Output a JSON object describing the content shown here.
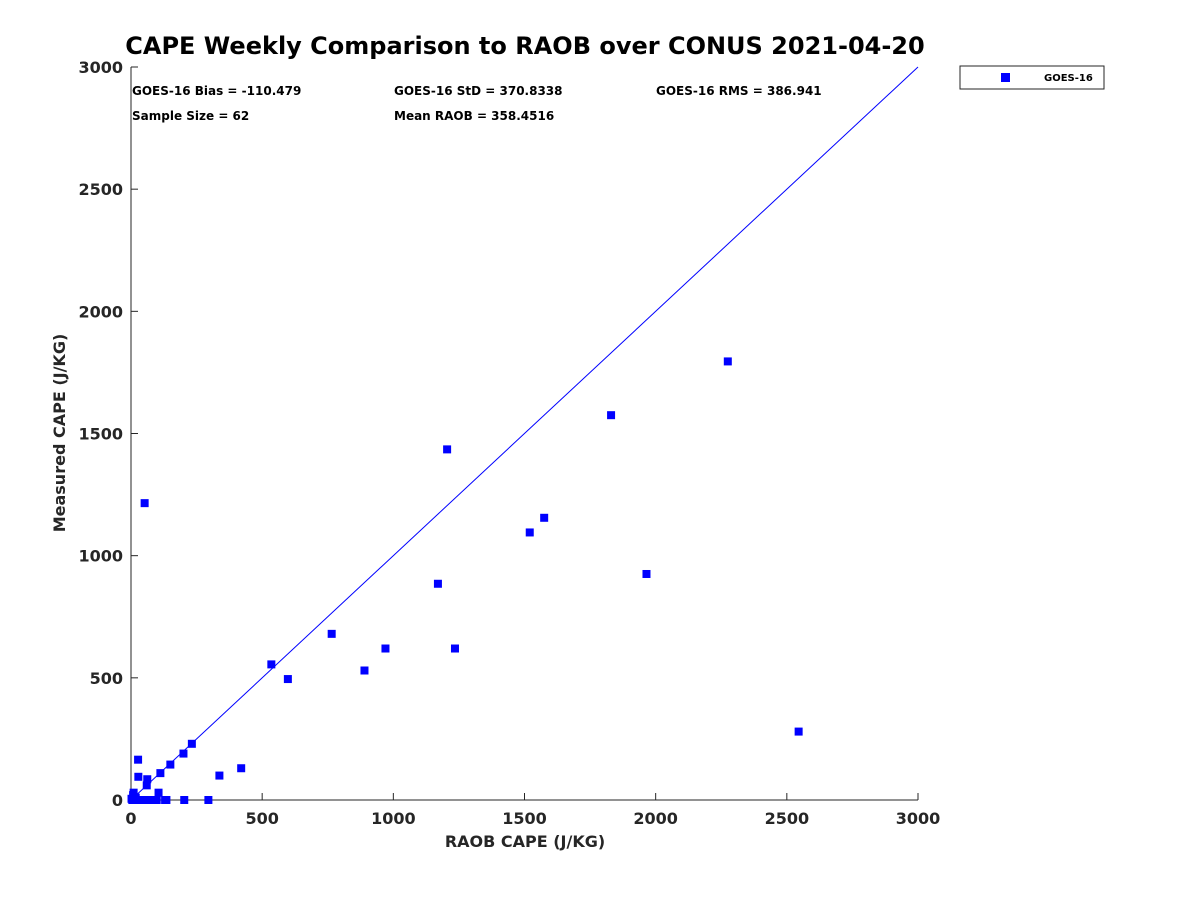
{
  "chart_data": {
    "type": "scatter",
    "title": "CAPE Weekly Comparison to RAOB over CONUS 2021-04-20",
    "xlabel": "RAOB CAPE (J/KG)",
    "ylabel": "Measured CAPE (J/KG)",
    "xlim": [
      0,
      3000
    ],
    "ylim": [
      0,
      3000
    ],
    "xticks": [
      0,
      500,
      1000,
      1500,
      2000,
      2500,
      3000
    ],
    "yticks": [
      0,
      500,
      1000,
      1500,
      2000,
      2500,
      3000
    ],
    "xtick_labels": [
      "0",
      "500",
      "1000",
      "1500",
      "2000",
      "2500",
      "3000"
    ],
    "ytick_labels": [
      "0",
      "500",
      "1000",
      "1500",
      "2000",
      "2500",
      "3000"
    ],
    "grid": false,
    "legend_position": "outside-top-right",
    "reference_line": {
      "name": "1:1 line",
      "x": [
        0,
        3000
      ],
      "y": [
        0,
        3000
      ],
      "color": "#0000FF"
    },
    "series": [
      {
        "name": "GOES-16",
        "color": "#0000FF",
        "marker": "square",
        "points": [
          [
            2,
            5
          ],
          [
            5,
            0
          ],
          [
            8,
            20
          ],
          [
            10,
            30
          ],
          [
            14,
            0
          ],
          [
            18,
            10
          ],
          [
            22,
            0
          ],
          [
            27,
            165
          ],
          [
            28,
            95
          ],
          [
            33,
            0
          ],
          [
            42,
            0
          ],
          [
            48,
            0
          ],
          [
            52,
            1215
          ],
          [
            55,
            0
          ],
          [
            60,
            60
          ],
          [
            62,
            85
          ],
          [
            68,
            0
          ],
          [
            75,
            0
          ],
          [
            85,
            0
          ],
          [
            98,
            0
          ],
          [
            105,
            30
          ],
          [
            112,
            110
          ],
          [
            130,
            0
          ],
          [
            135,
            0
          ],
          [
            150,
            145
          ],
          [
            200,
            190
          ],
          [
            203,
            0
          ],
          [
            232,
            230
          ],
          [
            295,
            0
          ],
          [
            337,
            100
          ],
          [
            420,
            130
          ],
          [
            535,
            555
          ],
          [
            598,
            495
          ],
          [
            765,
            680
          ],
          [
            890,
            530
          ],
          [
            970,
            620
          ],
          [
            1170,
            885
          ],
          [
            1205,
            1435
          ],
          [
            1235,
            620
          ],
          [
            1520,
            1095
          ],
          [
            1575,
            1155
          ],
          [
            1830,
            1575
          ],
          [
            1965,
            925
          ],
          [
            2275,
            1795
          ],
          [
            2545,
            280
          ]
        ]
      }
    ],
    "stats": {
      "bias": "GOES-16 Bias = -110.479",
      "std": "GOES-16 StD = 370.8338",
      "rms": "GOES-16 RMS = 386.941",
      "sample_size": "Sample Size = 62",
      "mean_raob": "Mean RAOB = 358.4516"
    },
    "legend": [
      {
        "label": "GOES-16",
        "marker": "square",
        "color": "#0000FF"
      }
    ]
  }
}
